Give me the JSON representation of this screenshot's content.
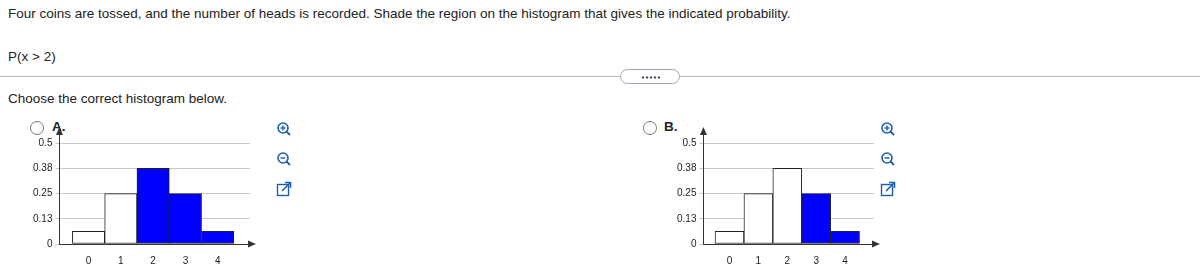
{
  "page": {
    "question": "Four coins are tossed, and the number of heads is recorded. Shade the region on the histogram that gives the indicated probability.",
    "probability": "P(x > 2)",
    "prompt": "Choose the correct histogram below.",
    "choices": [
      "A.",
      "B."
    ]
  },
  "chart_data": [
    {
      "type": "histogram",
      "bins": [
        -0.5,
        0.5,
        1.5,
        2.5,
        3.5,
        4.5
      ],
      "values": [
        0.0625,
        0.25,
        0.375,
        0.25,
        0.0625
      ],
      "colors": [
        "#ffffff",
        "#ffffff",
        "#0000ff",
        "#0000ff",
        "#0000ff"
      ],
      "xlim": [
        -0.9,
        5
      ],
      "xticks": [
        0,
        1,
        2,
        3,
        4
      ],
      "ylim": [
        0,
        0.55
      ],
      "yticks": [
        0,
        {
          "value": 0.125,
          "label": "0.13"
        },
        0.25,
        {
          "value": 0.375,
          "label": "0.38"
        },
        0.5
      ],
      "grid": true
    },
    {
      "type": "histogram",
      "bins": [
        -0.5,
        0.5,
        1.5,
        2.5,
        3.5,
        4.5
      ],
      "values": [
        0.0625,
        0.25,
        0.375,
        0.25,
        0.0625
      ],
      "colors": [
        "#ffffff",
        "#ffffff",
        "#ffffff",
        "#0000ff",
        "#0000ff"
      ],
      "xlim": [
        -0.9,
        5
      ],
      "xticks": [
        0,
        1,
        2,
        3,
        4
      ],
      "ylim": [
        0,
        0.55
      ],
      "yticks": [
        0,
        {
          "value": 0.125,
          "label": "0.13"
        },
        0.25,
        {
          "value": 0.375,
          "label": "0.38"
        },
        0.5
      ],
      "grid": true
    }
  ]
}
